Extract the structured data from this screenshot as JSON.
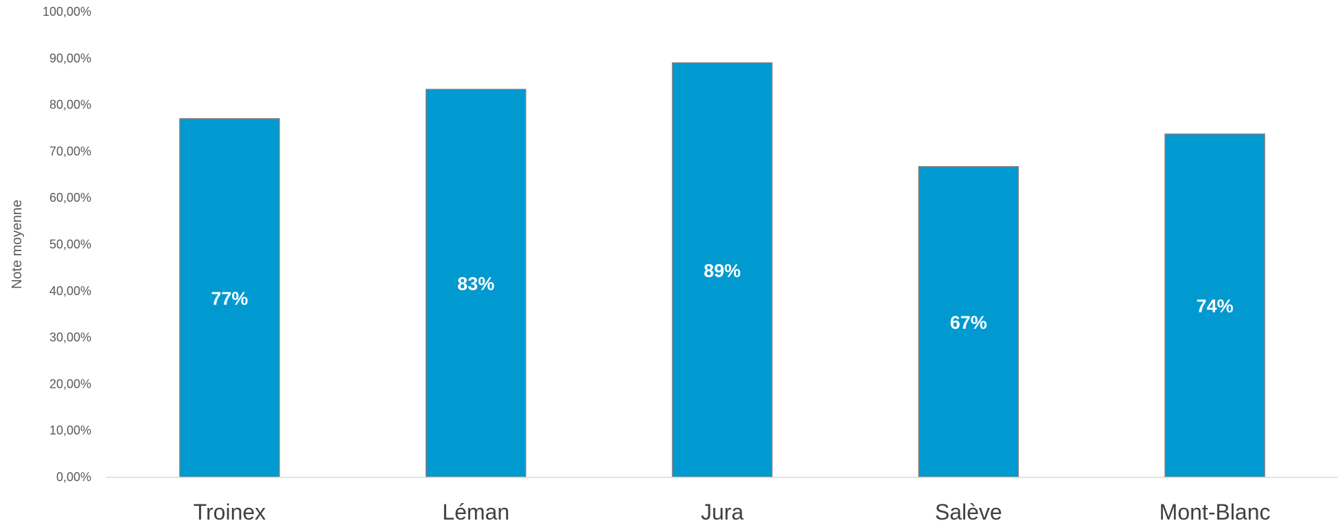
{
  "chart_data": {
    "type": "bar",
    "title": "",
    "xlabel": "",
    "ylabel": "Note moyenne",
    "categories": [
      "Troinex",
      "Léman",
      "Jura",
      "Salève",
      "Mont-Blanc"
    ],
    "values": [
      0.77,
      0.833,
      0.89,
      0.667,
      0.737
    ],
    "data_labels": [
      "77%",
      "83%",
      "89%",
      "67%",
      "74%"
    ],
    "ylim": [
      0,
      1
    ],
    "yticks": [
      0,
      0.1,
      0.2,
      0.3,
      0.4,
      0.5,
      0.6,
      0.7,
      0.8,
      0.9,
      1.0
    ],
    "ytick_labels": [
      "0,00%",
      "10,00%",
      "20,00%",
      "30,00%",
      "40,00%",
      "50,00%",
      "60,00%",
      "70,00%",
      "80,00%",
      "90,00%",
      "100,00%"
    ],
    "grid": false,
    "legend": "none",
    "colors": {
      "bar": "#0099D0",
      "bar_border": "#7F7F7F",
      "axis": "#D9D9D9"
    }
  }
}
